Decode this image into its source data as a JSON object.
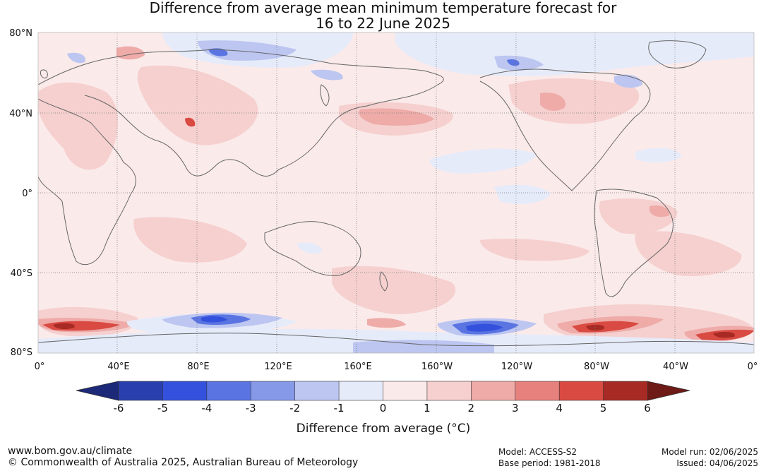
{
  "title_line1": "Difference from average mean minimum temperature forecast for",
  "title_line2": "16 to 22 June 2025",
  "lat_labels": [
    "80°N",
    "40°N",
    "0°",
    "40°S",
    "80°S"
  ],
  "lon_labels": [
    "0°",
    "40°E",
    "80°E",
    "120°E",
    "160°E",
    "160°W",
    "120°W",
    "80°W",
    "40°W",
    "0°"
  ],
  "colorbar": {
    "label": "Difference from average (°C)",
    "ticks": [
      "-6",
      "-5",
      "-4",
      "-3",
      "-2",
      "-1",
      "0",
      "1",
      "2",
      "3",
      "4",
      "5",
      "6"
    ],
    "colors": [
      "#2a3fae",
      "#3351dd",
      "#5a74e2",
      "#8699e8",
      "#bcc6f1",
      "#e6ebfa",
      "#fbeaea",
      "#f5d0cf",
      "#eeaba8",
      "#e7817d",
      "#d94a42",
      "#a82a24"
    ],
    "low_extend_color": "#1c2878",
    "high_extend_color": "#6e1a16"
  },
  "footer": {
    "website": "www.bom.gov.au/climate",
    "copyright": "© Commonwealth of Australia 2025, Australian Bureau of Meteorology",
    "model": "Model: ACCESS-S2",
    "base_period": "Base period: 1981-2018",
    "model_run": "Model run: 02/06/2025",
    "issued": "Issued: 04/06/2025"
  }
}
